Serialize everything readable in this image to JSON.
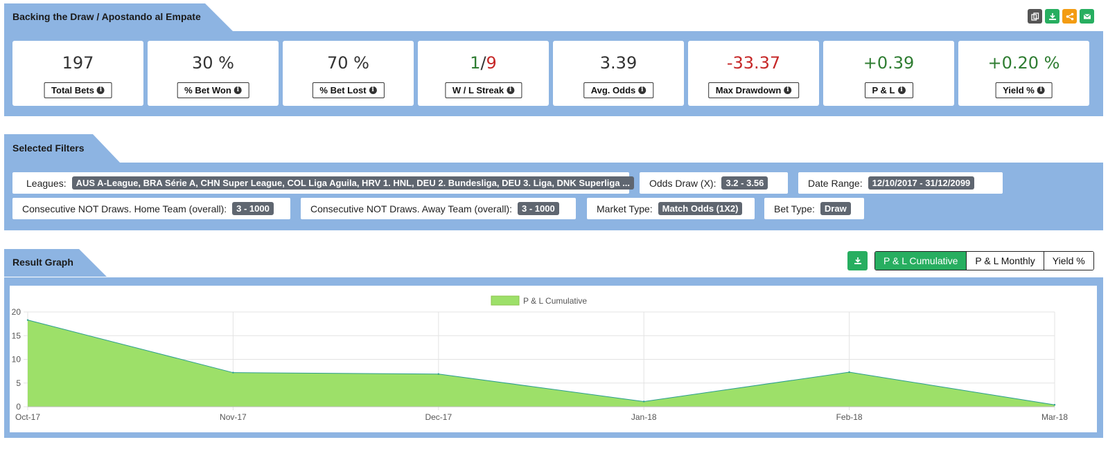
{
  "top_header": {
    "title": "Backing the Draw / Apostando al Empate"
  },
  "tools": [
    {
      "name": "copy-icon",
      "color": "#555555"
    },
    {
      "name": "download-icon",
      "color": "#27ae60"
    },
    {
      "name": "share-icon",
      "color": "#f39c12"
    },
    {
      "name": "email-icon",
      "color": "#27ae60"
    }
  ],
  "stats": [
    {
      "value": "197",
      "label": "Total Bets"
    },
    {
      "value": "30 %",
      "label": "% Bet Won"
    },
    {
      "value": "70 %",
      "label": "% Bet Lost"
    },
    {
      "value_win": "1",
      "value_sep": "/",
      "value_loss": "9",
      "label": "W / L Streak"
    },
    {
      "value": "3.39",
      "label": "Avg. Odds"
    },
    {
      "value": "-33.37",
      "label": "Max Drawdown"
    },
    {
      "value": "+0.39",
      "label": "P & L"
    },
    {
      "value": "+0.20 %",
      "label": "Yield %"
    }
  ],
  "filters_header": {
    "title": "Selected Filters"
  },
  "filters": [
    {
      "label": "Leagues:",
      "value": "AUS A-League, BRA Série A, CHN Super League, COL Liga Aguila, HRV 1. HNL, DEU 2. Bundesliga, DEU 3. Liga, DNK Superliga ..."
    },
    {
      "label": "Odds Draw (X):",
      "value": "3.2 - 3.56"
    },
    {
      "label": "Date Range:",
      "value": "12/10/2017 - 31/12/2099"
    },
    {
      "label": "Consecutive NOT Draws. Home Team (overall):",
      "value": "3 - 1000"
    },
    {
      "label": "Consecutive NOT Draws. Away Team (overall):",
      "value": "3 - 1000"
    },
    {
      "label": "Market Type:",
      "value": "Match Odds (1X2)"
    },
    {
      "label": "Bet Type:",
      "value": "Draw"
    }
  ],
  "graph_header": {
    "title": "Result Graph"
  },
  "graph_controls": {
    "download_icon": "download-icon",
    "tabs": [
      "P & L Cumulative",
      "P & L Monthly",
      "Yield %"
    ]
  },
  "chart_data": {
    "type": "area",
    "x": [
      "Oct-17",
      "Nov-17",
      "Dec-17",
      "Jan-18",
      "Feb-18",
      "Mar-18"
    ],
    "series": [
      {
        "name": "P & L Cumulative",
        "values": [
          18.3,
          7.2,
          6.9,
          1.1,
          7.3,
          0.4
        ],
        "color": "#9de069",
        "line_color": "#2a9d8f"
      }
    ],
    "ylim": [
      0,
      20
    ],
    "yticks": [
      0,
      5,
      10,
      15,
      20
    ],
    "grid": true,
    "legend": "top-center"
  }
}
